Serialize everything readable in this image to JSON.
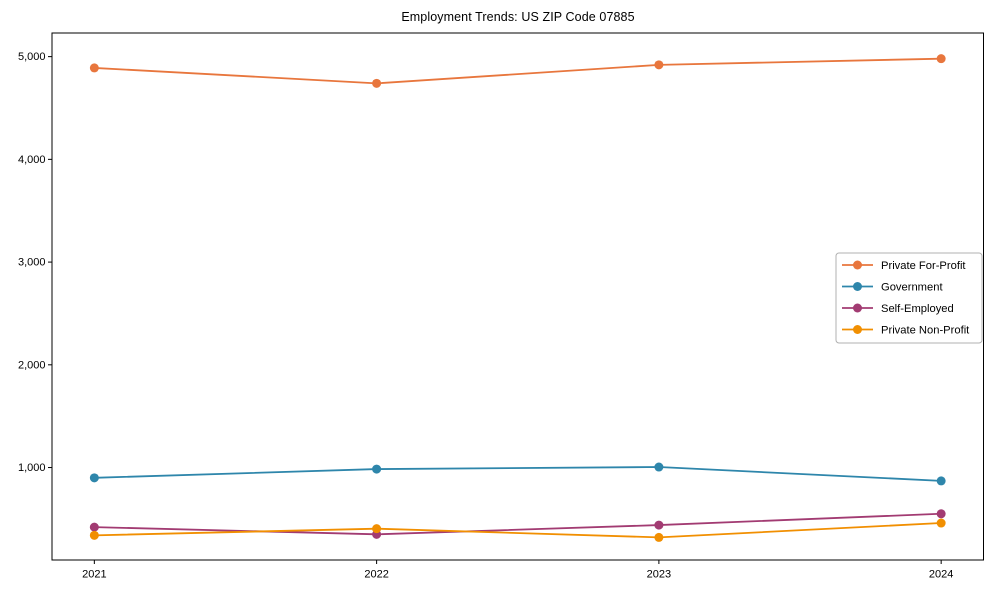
{
  "figure": {
    "background": "#ffffff",
    "axis_color": "#000000",
    "legend_border_color": "#b0b0b0",
    "legend_background": "#ffffff"
  },
  "chart_data": {
    "type": "line",
    "title": "Employment Trends: US ZIP Code 07885",
    "x": [
      2021,
      2022,
      2023,
      2024
    ],
    "x_tick_labels": [
      "2021",
      "2022",
      "2023",
      "2024"
    ],
    "xlabel": "",
    "ylabel": "",
    "xlim": [
      2020.85,
      2024.15
    ],
    "ylim": [
      100,
      5230
    ],
    "y_ticks": [
      1000,
      2000,
      3000,
      4000,
      5000
    ],
    "y_tick_labels": [
      "1,000",
      "2,000",
      "3,000",
      "4,000",
      "5,000"
    ],
    "grid": false,
    "marker": "circle",
    "legend_position": "center-right",
    "series": [
      {
        "name": "Private For-Profit",
        "color": "#E8763D",
        "values": [
          4890,
          4740,
          4920,
          4980
        ]
      },
      {
        "name": "Government",
        "color": "#2E86AB",
        "values": [
          900,
          985,
          1005,
          870
        ]
      },
      {
        "name": "Self-Employed",
        "color": "#A23B72",
        "values": [
          420,
          350,
          440,
          550
        ]
      },
      {
        "name": "Private Non-Profit",
        "color": "#F18F01",
        "values": [
          340,
          405,
          320,
          460
        ]
      }
    ]
  }
}
